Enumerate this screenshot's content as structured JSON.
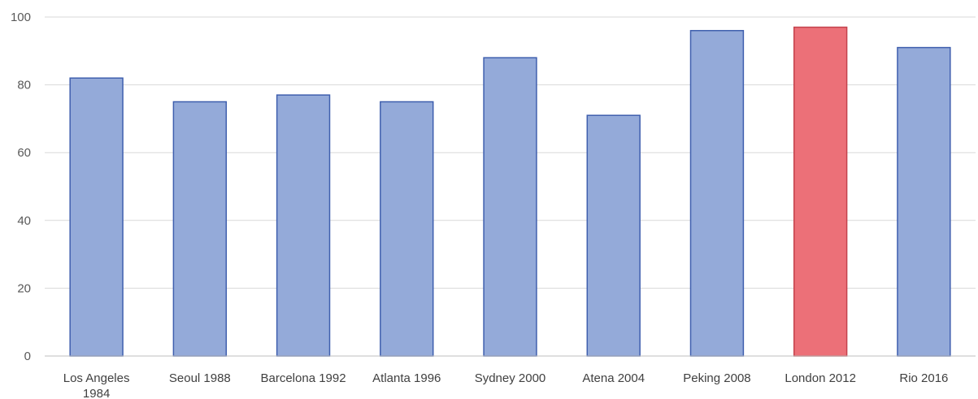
{
  "chart_data": {
    "type": "bar",
    "title": "",
    "xlabel": "",
    "ylabel": "",
    "ylim": [
      0,
      100
    ],
    "yticks": [
      0,
      20,
      40,
      60,
      80,
      100
    ],
    "grid": true,
    "legend": "none",
    "categories": [
      [
        "Los Angeles",
        "1984"
      ],
      [
        "Seoul 1988"
      ],
      [
        "Barcelona 1992"
      ],
      [
        "Atlanta 1996"
      ],
      [
        "Sydney 2000"
      ],
      [
        "Atena 2004"
      ],
      [
        "Peking 2008"
      ],
      [
        "London 2012"
      ],
      [
        "Rio 2016"
      ]
    ],
    "series": [
      {
        "values": [
          82,
          75,
          77,
          75,
          88,
          71,
          96,
          97,
          91
        ]
      }
    ],
    "highlight_index": 7
  },
  "colors": {
    "bar_fill": "#94aad9",
    "bar_stroke": "#3f5fae",
    "highlight_fill": "#ec7078",
    "highlight_stroke": "#c4424c"
  }
}
